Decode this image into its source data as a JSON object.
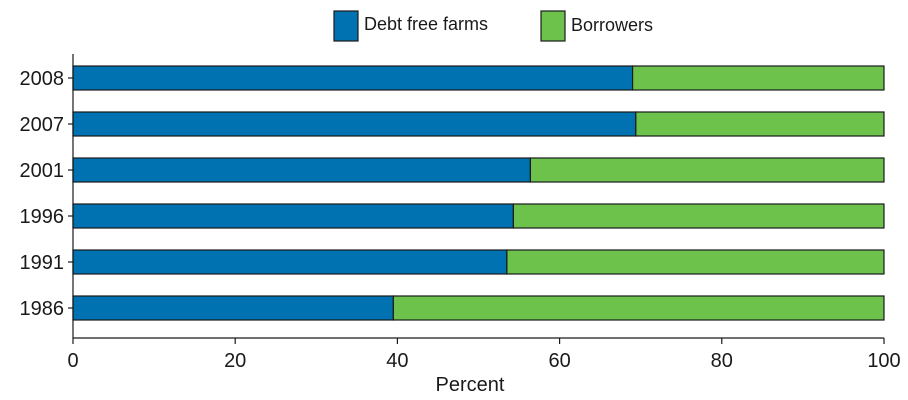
{
  "chart_data": {
    "type": "bar",
    "orientation": "horizontal",
    "stacked": true,
    "categories": [
      "1986",
      "1991",
      "1996",
      "2001",
      "2007",
      "2008"
    ],
    "series": [
      {
        "name": "Debt free farms",
        "color": "#0072b2",
        "values": [
          39.5,
          53.5,
          54.3,
          56.4,
          69.4,
          69.0
        ]
      },
      {
        "name": "Borrowers",
        "color": "#6cc24a",
        "values": [
          60.5,
          46.5,
          45.7,
          43.6,
          30.6,
          31.0
        ]
      }
    ],
    "xlabel": "Percent",
    "ylabel": "",
    "xlim": [
      0,
      100
    ],
    "xticks": [
      0,
      20,
      40,
      60,
      80,
      100
    ],
    "grid": false,
    "legend_position": "top-center"
  }
}
